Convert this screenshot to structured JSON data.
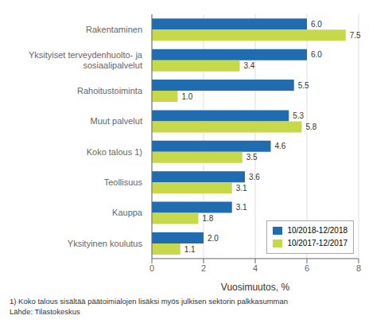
{
  "chart_data": {
    "type": "bar",
    "orientation": "horizontal",
    "categories": [
      "Rakentaminen",
      "Yksityiset terveydenhuolto- ja\nsosiaalipalvelut",
      "Rahoitustoiminta",
      "Muut palvelut",
      "Koko talous 1)",
      "Teollisuus",
      "Kauppa",
      "Yksityinen koulutus"
    ],
    "series": [
      {
        "name": "10/2018-12/2018",
        "color": "#1F6CB0",
        "values": [
          6.0,
          6.0,
          5.5,
          5.3,
          4.6,
          3.6,
          3.1,
          2.0
        ],
        "value_labels": [
          "6.0",
          "6.0",
          "5.5",
          "5.3",
          "4.6",
          "3.6",
          "3.1",
          "2.0"
        ]
      },
      {
        "name": "10/2017-12/2017",
        "color": "#C8D84B",
        "values": [
          7.5,
          3.4,
          1.0,
          5.8,
          3.5,
          3.1,
          1.8,
          1.1
        ],
        "value_labels": [
          "7.5",
          "3.4",
          "1.0",
          "5.8",
          "3.5",
          "3.1",
          "1.8",
          "1.1"
        ]
      }
    ],
    "xlabel": "Vuosimuutos, %",
    "xlim": [
      0,
      8
    ],
    "xticks": [
      0,
      2,
      4,
      6,
      8
    ],
    "grid": true,
    "legend": "lower right",
    "data_labels": true,
    "annotations": [
      "1) Koko talous sisältää päätoimialojen lisäksi myös julkisen sektorin palkkasumman",
      "Lähde: Tilastokeskus"
    ]
  }
}
